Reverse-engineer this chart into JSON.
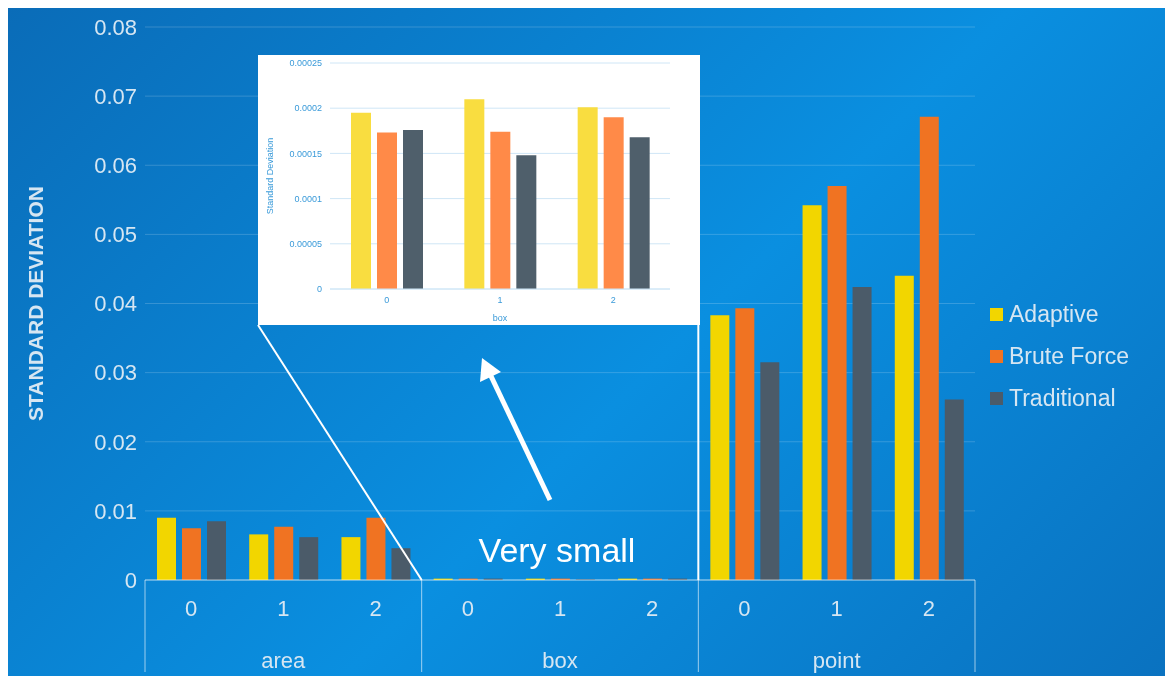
{
  "chart_data": [
    {
      "type": "bar",
      "ylabel": "STANDARD DEVIATION",
      "categories": [
        "0",
        "1",
        "2",
        "0",
        "1",
        "2",
        "0",
        "1",
        "2"
      ],
      "series": [
        {
          "name": "Adaptive",
          "color": "#f2d600",
          "values": [
            0.009,
            0.0066,
            0.0062,
            0.0002,
            0.0002,
            0.0002,
            0.0383,
            0.0542,
            0.044
          ]
        },
        {
          "name": "Brute Force",
          "color": "#f07322",
          "values": [
            0.0075,
            0.0077,
            0.009,
            0.0002,
            0.0002,
            0.0002,
            0.0393,
            0.057,
            0.067
          ]
        },
        {
          "name": "Traditional",
          "color": "#4b5b69",
          "values": [
            0.0085,
            0.0062,
            0.0046,
            0.0002,
            0.0001,
            0.0002,
            0.0315,
            0.0424,
            0.0261
          ]
        }
      ],
      "ylim": [
        0,
        0.08
      ],
      "yticks": [
        0,
        0.01,
        0.02,
        0.03,
        0.04,
        0.05,
        0.06,
        0.07,
        0.08
      ],
      "grid": "y",
      "legend": "right",
      "annotations": [
        "area",
        "box",
        "point",
        "Very small"
      ]
    },
    {
      "type": "bar",
      "ylabel": "Standard Deviation",
      "xlabel": "box",
      "categories": [
        "0",
        "1",
        "2"
      ],
      "series": [
        {
          "color": "#f9dd40",
          "values": [
            0.000195,
            0.00021,
            0.000201
          ]
        },
        {
          "color": "#ff8a48",
          "values": [
            0.000173,
            0.000174,
            0.00019
          ]
        },
        {
          "color": "#4f5f6b",
          "values": [
            0.000176,
            0.000148,
            0.000168
          ]
        }
      ],
      "ylim": [
        0,
        0.00025
      ],
      "yticks": [
        0,
        {
          "value": 5e-05,
          "label": "0.00005"
        },
        0.0001,
        0.00015,
        0.0002,
        0.00025
      ],
      "grid": "y"
    }
  ]
}
